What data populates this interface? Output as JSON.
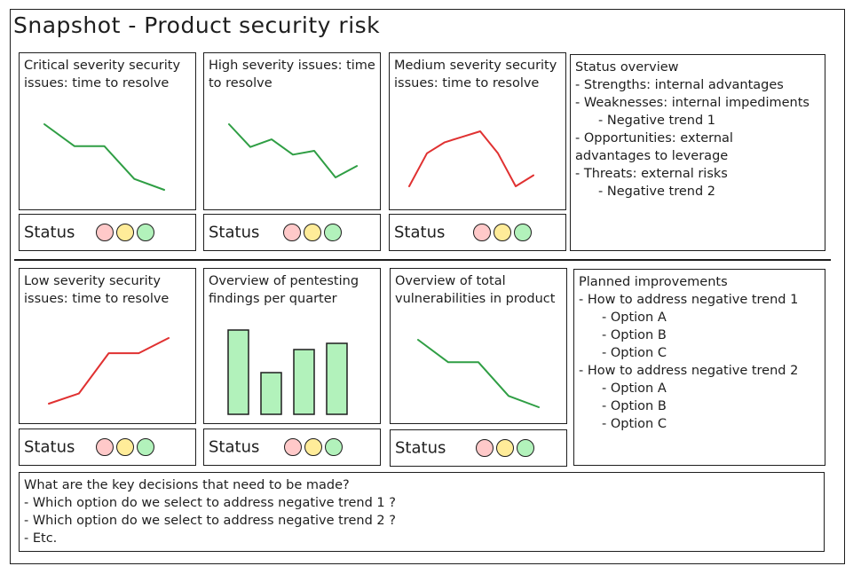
{
  "title": "Snapshot - Product security risk",
  "status_label": "Status",
  "colors": {
    "red_line": "#e03131",
    "green_line": "#2f9e44",
    "bar_fill": "#b2f2bb",
    "dot_red": "#ffc9c9",
    "dot_yellow": "#ffec99",
    "dot_green": "#b2f2bb"
  },
  "panels": [
    {
      "title": "Critical severity security issues: time to resolve"
    },
    {
      "title": "High severity issues: time to resolve"
    },
    {
      "title": "Medium severity security issues: time to resolve"
    },
    {
      "title": "Low severity security issues: time to resolve"
    },
    {
      "title": "Overview of pentesting findings per quarter"
    },
    {
      "title": "Overview of total vulnerabilities in product"
    }
  ],
  "status_overview": {
    "heading": "Status overview",
    "lines": [
      "- Strengths: internal advantages",
      "- Weaknesses: internal impediments",
      "- Negative trend 1",
      "- Opportunities: external",
      "advantages to leverage",
      "- Threats: external risks",
      "- Negative trend 2"
    ]
  },
  "planned_improvements": {
    "heading": "Planned improvements",
    "lines": [
      "- How to address negative trend 1",
      "- Option A",
      "- Option B",
      "- Option C",
      "- How to address negative trend 2",
      "- Option A",
      "- Option B",
      "- Option C"
    ]
  },
  "decisions": {
    "lines": [
      "What are the key decisions that need to be made?",
      "- Which option do we select to address negative trend 1 ?",
      "- Which option do we select to address negative trend 2 ?",
      "- Etc."
    ]
  },
  "chart_data": [
    {
      "type": "line",
      "color": "green",
      "values": [
        7,
        5,
        5,
        2,
        1
      ]
    },
    {
      "type": "line",
      "color": "green",
      "values": [
        7,
        4,
        5,
        3,
        3.5,
        0,
        1.5
      ]
    },
    {
      "type": "line",
      "color": "red",
      "values": [
        0,
        3,
        4,
        4.5,
        5,
        3,
        0,
        1
      ]
    },
    {
      "type": "line",
      "color": "red",
      "values": [
        0,
        1,
        5,
        5,
        6.5
      ]
    },
    {
      "type": "bar",
      "values": [
        9.5,
        4.7,
        7.3,
        8
      ]
    },
    {
      "type": "line",
      "color": "green",
      "values": [
        7,
        5,
        5,
        2,
        1
      ]
    }
  ]
}
